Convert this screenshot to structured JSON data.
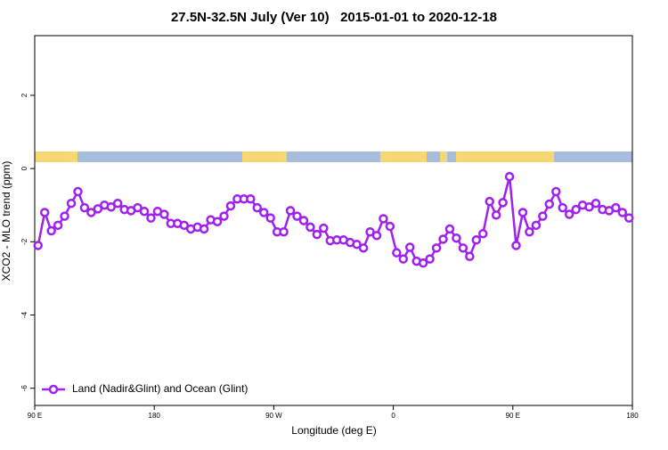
{
  "chart_data": {
    "type": "line",
    "title": "27.5N-32.5N July (Ver 10)   2015-01-01 to 2020-12-18",
    "x_label": "Longitude (deg E)",
    "y_label": "XCO2 - MLO trend (ppm)",
    "xlim": [
      90,
      540
    ],
    "xticks": [
      {
        "value": 90,
        "label": "90 E"
      },
      180,
      {
        "value": 270,
        "label": "90 W"
      },
      {
        "value": 360,
        "label": "0"
      },
      {
        "value": 450,
        "label": "90 E"
      },
      {
        "value": 540,
        "label": "180"
      }
    ],
    "ylim": [
      -6.47,
      3.63
    ],
    "yticks": [
      -6,
      -4,
      -2,
      0,
      2
    ],
    "legend": "bottom-left",
    "x": [
      92.5,
      97.5,
      102.5,
      107.5,
      112.5,
      117.5,
      122.5,
      127.5,
      132.5,
      137.5,
      142.5,
      147.5,
      152.5,
      157.5,
      162.5,
      167.5,
      172.5,
      177.5,
      182.5,
      187.5,
      192.5,
      197.5,
      202.5,
      207.5,
      212.5,
      217.5,
      222.5,
      227.5,
      232.5,
      237.5,
      242.5,
      247.5,
      252.5,
      257.5,
      262.5,
      267.5,
      272.5,
      277.5,
      282.5,
      287.5,
      292.5,
      297.5,
      302.5,
      307.5,
      312.5,
      317.5,
      322.5,
      327.5,
      332.5,
      337.5,
      342.5,
      347.5,
      352.5,
      357.5,
      362.5,
      367.5,
      372.5,
      377.5,
      382.5,
      387.5,
      392.5,
      397.5,
      402.5,
      407.5,
      412.5,
      417.5,
      422.5,
      427.5,
      432.5,
      437.5,
      442.5,
      447.5,
      452.5,
      457.5,
      462.5,
      467.5,
      472.5,
      477.5,
      482.5,
      487.5,
      492.5,
      497.5,
      502.5,
      507.5,
      512.5,
      517.5,
      522.5,
      527.5,
      532.5,
      537.5
    ],
    "series": [
      {
        "name": "Land (Nadir&Glint) and Ocean (Glint)",
        "color": "#a020f0",
        "values": [
          -2.1,
          -1.2,
          -1.7,
          -1.55,
          -1.3,
          -0.95,
          -0.63,
          -1.07,
          -1.2,
          -1.1,
          -1.0,
          -1.05,
          -0.95,
          -1.12,
          -1.15,
          -1.07,
          -1.17,
          -1.35,
          -1.17,
          -1.25,
          -1.5,
          -1.5,
          -1.55,
          -1.65,
          -1.6,
          -1.65,
          -1.4,
          -1.45,
          -1.3,
          -1.02,
          -0.83,
          -0.83,
          -0.83,
          -1.07,
          -1.2,
          -1.35,
          -1.73,
          -1.73,
          -1.15,
          -1.3,
          -1.42,
          -1.6,
          -1.8,
          -1.63,
          -1.97,
          -1.95,
          -1.95,
          -2.02,
          -2.07,
          -2.17,
          -1.73,
          -1.83,
          -1.37,
          -1.58,
          -2.3,
          -2.47,
          -2.15,
          -2.53,
          -2.58,
          -2.47,
          -2.17,
          -1.93,
          -1.65,
          -1.9,
          -2.17,
          -2.4,
          -1.95,
          -1.78,
          -0.9,
          -1.27,
          -0.93,
          -0.22,
          -2.1,
          -1.2,
          -1.73,
          -1.55,
          -1.3,
          -0.97,
          -0.63,
          -1.07,
          -1.25,
          -1.12,
          -1.0,
          -1.05,
          -0.95,
          -1.12,
          -1.15,
          -1.07,
          -1.2,
          -1.35
        ]
      }
    ]
  }
}
